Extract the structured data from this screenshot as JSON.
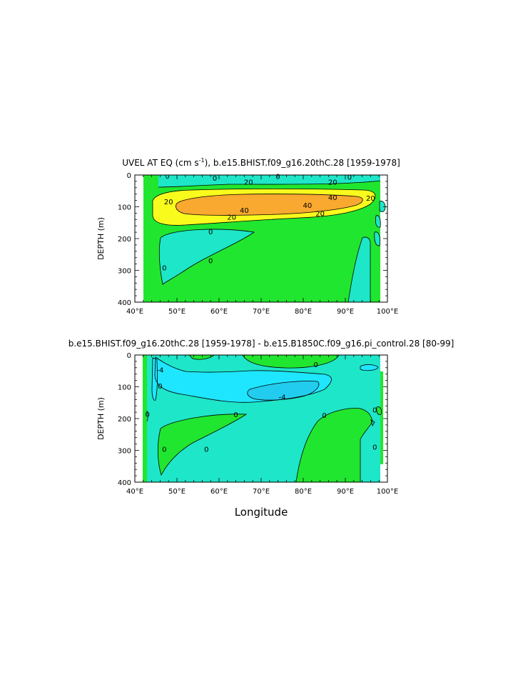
{
  "chart_data": [
    {
      "type": "contour",
      "title_prefix": "UVEL AT EQ (cm s",
      "title_sup": "-1",
      "title_suffix": "), b.e15.BHIST.f09_g16.20thC.28 [1959-1978]",
      "xlabel": "",
      "ylabel": "DEPTH (m)",
      "xlim": [
        40,
        100
      ],
      "ylim": [
        400,
        0
      ],
      "xticks": [
        "40°E",
        "50°E",
        "60°E",
        "70°E",
        "80°E",
        "90°E",
        "100°E"
      ],
      "yticks": [
        "0",
        "100",
        "200",
        "300",
        "400"
      ],
      "fill_colors": {
        "land": "#ffffff",
        "below_0": "#1ee6c8",
        "0_to_20": "#21e62f",
        "20_to_40": "#f9fb1d",
        "above_40": "#f9a830"
      },
      "contour_labels": [
        {
          "text": "0",
          "lon": 59,
          "depth": 10
        },
        {
          "text": "0",
          "lon": 74,
          "depth": 5
        },
        {
          "text": "0",
          "lon": 91,
          "depth": 7
        },
        {
          "text": "20",
          "lon": 67,
          "depth": 23
        },
        {
          "text": "20",
          "lon": 87,
          "depth": 23
        },
        {
          "text": "20",
          "lon": 48,
          "depth": 84
        },
        {
          "text": "20",
          "lon": 96,
          "depth": 73
        },
        {
          "text": "20",
          "lon": 63,
          "depth": 133
        },
        {
          "text": "20",
          "lon": 84,
          "depth": 121
        },
        {
          "text": "40",
          "lon": 66,
          "depth": 111
        },
        {
          "text": "40",
          "lon": 87,
          "depth": 71
        },
        {
          "text": "40",
          "lon": 81,
          "depth": 96
        },
        {
          "text": "0",
          "lon": 58,
          "depth": 179
        },
        {
          "text": "0",
          "lon": 58,
          "depth": 270
        },
        {
          "text": "0",
          "lon": 47,
          "depth": 292
        }
      ]
    },
    {
      "type": "contour",
      "title": "b.e15.BHIST.f09_g16.20thC.28 [1959-1978] - b.e15.B1850C.f09_g16.pi_control.28 [80-99]",
      "xlabel": "Longitude",
      "ylabel": "DEPTH (m)",
      "xlim": [
        40,
        100
      ],
      "ylim": [
        400,
        0
      ],
      "xticks": [
        "40°E",
        "50°E",
        "60°E",
        "70°E",
        "80°E",
        "90°E",
        "100°E"
      ],
      "yticks": [
        "0",
        "100",
        "200",
        "300",
        "400"
      ],
      "fill_colors": {
        "land": "#ffffff",
        "below_minus4": "#1ee6ff",
        "minus4_to_0": "#1ee6c8",
        "above_0": "#21e62f"
      },
      "contour_labels": [
        {
          "text": "-4",
          "lon": 46,
          "depth": 47
        },
        {
          "text": "0",
          "lon": 46,
          "depth": 98
        },
        {
          "text": "-4",
          "lon": 75,
          "depth": 133
        },
        {
          "text": "0",
          "lon": 83,
          "depth": 30
        },
        {
          "text": "0",
          "lon": 43,
          "depth": 187
        },
        {
          "text": "0",
          "lon": 64,
          "depth": 188
        },
        {
          "text": "0",
          "lon": 85,
          "depth": 190
        },
        {
          "text": "0",
          "lon": 97,
          "depth": 173
        },
        {
          "text": "0",
          "lon": 47,
          "depth": 297
        },
        {
          "text": "0",
          "lon": 57,
          "depth": 297
        },
        {
          "text": "0",
          "lon": 97,
          "depth": 290
        }
      ]
    }
  ]
}
